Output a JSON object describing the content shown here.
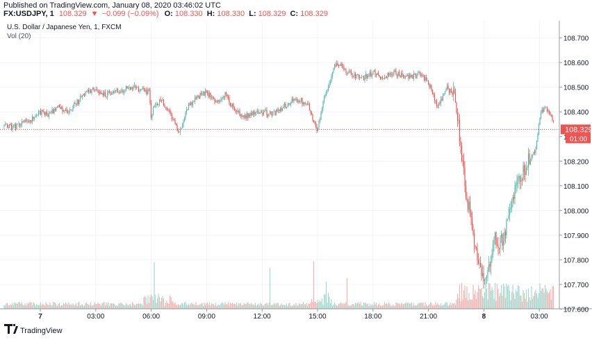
{
  "header": {
    "published": "Published on TradingView.com, January 08, 2020 03:46:02 UTC",
    "symbol": "FX:USDJPY, 1",
    "price": "108.329",
    "arrow": "▼",
    "change": "−0.099 (−0.09%)",
    "o_label": "O:",
    "o_value": "108.330",
    "h_label": "H:",
    "h_value": "108.330",
    "l_label": "L:",
    "l_value": "108.329",
    "c_label": "C:",
    "c_value": "108.329"
  },
  "legend": {
    "title": "U.S. Dollar / Japanese Yen, 1, FXCM",
    "volume": "Vol (20)"
  },
  "price_axis": {
    "ticks": [
      "108.700",
      "108.600",
      "108.500",
      "108.400",
      "108.300",
      "108.200",
      "108.100",
      "108.000",
      "107.900",
      "107.800",
      "107.700",
      "107.600"
    ],
    "current_price_label": "108.329",
    "countdown_label": "01:00"
  },
  "time_axis": {
    "ticks": [
      "7",
      "03:00",
      "06:00",
      "09:00",
      "12:00",
      "15:00",
      "18:00",
      "21:00",
      "8",
      "03:00"
    ]
  },
  "footer": {
    "brand": "TradingView"
  },
  "colors": {
    "up": "#53b9a6",
    "down": "#ef5350",
    "current_line": "#ef5350",
    "grid": "#f0f3fa",
    "axis_text": "#131722",
    "header_label": "#131722",
    "header_value": "#ef5350"
  },
  "chart_data": {
    "type": "candlestick",
    "title": "U.S. Dollar / Japanese Yen, 1, FXCM",
    "symbol": "FX:USDJPY",
    "interval": "1 minute",
    "ylim": [
      107.55,
      108.72
    ],
    "current_price": 108.329,
    "time_ticks": [
      "7",
      "03:00",
      "06:00",
      "09:00",
      "12:00",
      "15:00",
      "18:00",
      "21:00",
      "8",
      "03:00"
    ],
    "grid": true,
    "path_hours": [
      -1.3,
      -1.0,
      -0.5,
      0.0,
      0.5,
      1.0,
      1.5,
      2.0,
      2.5,
      3.0,
      3.5,
      4.0,
      4.5,
      5.0,
      5.5,
      5.9,
      6.0,
      6.2,
      6.5,
      7.0,
      7.5,
      8.0,
      8.5,
      9.0,
      9.5,
      10.0,
      10.5,
      11.0,
      11.5,
      12.0,
      12.5,
      13.0,
      13.5,
      14.0,
      14.5,
      15.0,
      15.3,
      15.5,
      16.0,
      16.5,
      17.0,
      17.5,
      18.0,
      18.5,
      19.0,
      19.5,
      20.0,
      20.5,
      21.0,
      21.5,
      22.0,
      22.3,
      22.5,
      22.7,
      23.0,
      23.2,
      23.4,
      23.6,
      23.8,
      24.0,
      24.3,
      24.6,
      24.9,
      25.2,
      25.5,
      25.8,
      26.1,
      26.5,
      26.8,
      27.1,
      27.4,
      27.7,
      28.0,
      28.2
    ],
    "path_prices": [
      108.34,
      108.36,
      108.37,
      108.4,
      108.39,
      108.42,
      108.4,
      108.44,
      108.48,
      108.49,
      108.47,
      108.48,
      108.49,
      108.5,
      108.49,
      108.48,
      108.38,
      108.43,
      108.45,
      108.4,
      108.31,
      108.42,
      108.46,
      108.48,
      108.44,
      108.47,
      108.41,
      108.38,
      108.39,
      108.4,
      108.39,
      108.41,
      108.44,
      108.45,
      108.43,
      108.32,
      108.45,
      108.48,
      108.6,
      108.57,
      108.55,
      108.54,
      108.56,
      108.54,
      108.56,
      108.55,
      108.54,
      108.55,
      108.52,
      108.42,
      108.5,
      108.47,
      108.42,
      108.3,
      108.1,
      108.0,
      107.9,
      107.83,
      107.78,
      107.73,
      107.76,
      107.88,
      107.86,
      107.92,
      108.05,
      108.11,
      108.16,
      108.21,
      108.25,
      108.4,
      108.42,
      108.37,
      108.31,
      108.33
    ],
    "volume_profile": "low and steady through the Asian and European sessions, with spikes near 06:00–07:00 and 15:00, and much heavier volume during the sharp drop after 22:00"
  }
}
